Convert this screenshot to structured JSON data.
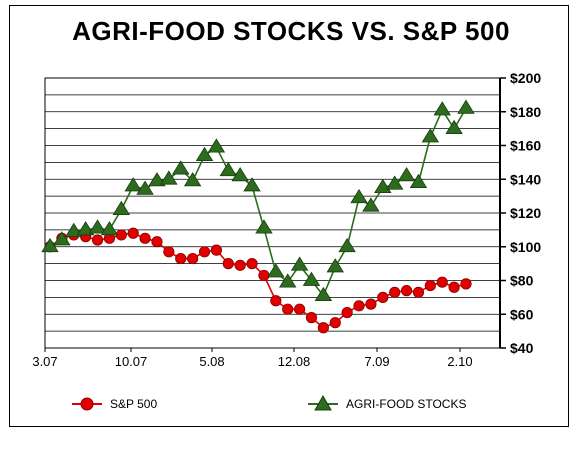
{
  "chart_data": {
    "type": "line",
    "title": "AGRI-FOOD STOCKS VS. S&P 500",
    "xlabel": "",
    "ylabel": "",
    "x_tick_labels": [
      "3.07",
      "10.07",
      "5.08",
      "12.08",
      "7.09",
      "2.10"
    ],
    "y_tick_labels": [
      "$40",
      "$60",
      "$80",
      "$100",
      "$120",
      "$140",
      "$160",
      "$180",
      "$200"
    ],
    "ylim": [
      40,
      200
    ],
    "grid": "horizontal",
    "legend_position": "bottom",
    "series": [
      {
        "name": "S&P 500",
        "color": "#e00000",
        "marker": "circle",
        "values": [
          100,
          105,
          107,
          106,
          104,
          105,
          107,
          108,
          105,
          103,
          97,
          93,
          93,
          97,
          98,
          90,
          89,
          90,
          83,
          68,
          63,
          63,
          58,
          52,
          55,
          61,
          65,
          66,
          70,
          73,
          74,
          73,
          77,
          79,
          76,
          78
        ]
      },
      {
        "name": "AGRI-FOOD STOCKS",
        "color": "#2d6b1e",
        "marker": "triangle",
        "values": [
          100,
          104,
          109,
          110,
          111,
          110,
          122,
          136,
          134,
          139,
          140,
          146,
          139,
          154,
          159,
          145,
          142,
          136,
          111,
          85,
          79,
          89,
          80,
          71,
          88,
          100,
          129,
          124,
          135,
          137,
          142,
          138,
          165,
          181,
          170,
          182
        ]
      }
    ]
  },
  "legend": {
    "sp500_label": "S&P 500",
    "agri_label": "AGRI-FOOD STOCKS"
  }
}
